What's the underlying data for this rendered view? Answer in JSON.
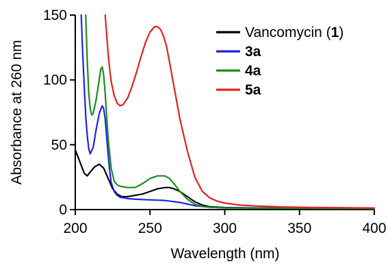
{
  "chart_data": {
    "type": "line",
    "title": "",
    "xlabel": "Wavelength (nm)",
    "ylabel": "Absorbance at 260 nm",
    "xlim": [
      200,
      400
    ],
    "ylim": [
      0,
      150
    ],
    "x_ticks": [
      "200",
      "250",
      "300",
      "350",
      "400"
    ],
    "y_ticks": [
      "0",
      "50",
      "100",
      "150"
    ],
    "grid": false,
    "legend_position": "top-right",
    "series": [
      {
        "name": "Vancomycin (1)",
        "legend_prefix": "Vancomycin (",
        "legend_bold": "1",
        "legend_suffix": ")",
        "color": "#000000",
        "x": [
          200,
          203,
          206,
          208,
          210,
          213,
          216,
          219,
          222,
          225,
          228,
          231,
          235,
          240,
          245,
          250,
          255,
          260,
          263,
          266,
          270,
          275,
          280,
          285,
          290,
          300,
          320,
          350,
          400
        ],
        "y": [
          46,
          37,
          28,
          26,
          29,
          33,
          35,
          32,
          24,
          16,
          12,
          10,
          10,
          11,
          12,
          14,
          16,
          17,
          17,
          16,
          14,
          10,
          6,
          3.5,
          2.2,
          1.6,
          1.2,
          1.0,
          0.8
        ]
      },
      {
        "name": "3a",
        "legend_prefix": "",
        "legend_bold": "3a",
        "legend_suffix": "",
        "color": "#1f1fe6",
        "x": [
          204,
          205,
          206,
          207,
          208,
          209,
          210,
          212,
          214,
          216,
          218,
          219,
          220,
          221,
          222,
          223,
          224,
          226,
          228,
          230,
          235,
          240,
          250,
          260,
          270,
          280,
          290,
          300,
          350,
          400
        ],
        "y": [
          150,
          120,
          95,
          72,
          57,
          47,
          43,
          48,
          62,
          74,
          80,
          78,
          70,
          56,
          42,
          30,
          21,
          14,
          11,
          9.5,
          8.5,
          8,
          7.5,
          7,
          5.5,
          3,
          1.8,
          1.5,
          1.2,
          1.0
        ]
      },
      {
        "name": "4a",
        "legend_prefix": "",
        "legend_bold": "4a",
        "legend_suffix": "",
        "color": "#1a8c1a",
        "x": [
          207,
          208,
          209,
          210,
          211,
          212,
          214,
          216,
          217,
          218,
          219,
          220,
          221,
          222,
          224,
          226,
          228,
          230,
          235,
          240,
          245,
          250,
          255,
          260,
          263,
          266,
          270,
          275,
          280,
          285,
          290,
          300,
          350,
          400
        ],
        "y": [
          150,
          115,
          90,
          78,
          73,
          74,
          85,
          100,
          108,
          110,
          104,
          90,
          72,
          55,
          32,
          22,
          19,
          18,
          17,
          17,
          20,
          24,
          26,
          26,
          24,
          20,
          14,
          8,
          4,
          2.5,
          1.8,
          1.2,
          1.0,
          0.8
        ]
      },
      {
        "name": "5a",
        "legend_prefix": "",
        "legend_bold": "5a",
        "legend_suffix": "",
        "color": "#e61f1f",
        "x": [
          220,
          221,
          222,
          223,
          224,
          226,
          228,
          230,
          232,
          235,
          238,
          241,
          244,
          247,
          250,
          253,
          255,
          257,
          259,
          261,
          263,
          266,
          270,
          275,
          280,
          285,
          290,
          295,
          300,
          310,
          320,
          340,
          360,
          400
        ],
        "y": [
          150,
          135,
          120,
          108,
          99,
          88,
          82,
          80,
          81,
          86,
          95,
          106,
          118,
          129,
          137,
          141,
          141,
          139,
          134,
          126,
          114,
          95,
          70,
          45,
          25,
          14,
          9,
          6.5,
          5,
          3.5,
          2.8,
          2.0,
          1.6,
          1.2
        ]
      }
    ]
  }
}
